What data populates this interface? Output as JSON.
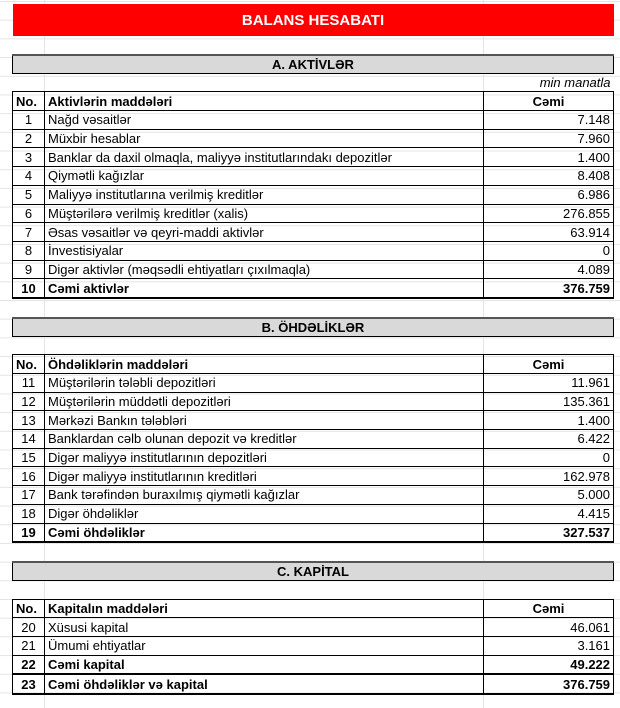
{
  "title": "BALANS HESABATI",
  "colors": {
    "title_bg": "#ff0000",
    "section_bg": "#d9d9d9"
  },
  "unit": "min manatla",
  "sections": [
    {
      "heading": "A. AKTİVLƏR",
      "show_unit": true,
      "columns": [
        "No.",
        "Aktivlərin maddələri",
        "Cəmi"
      ],
      "rows": [
        {
          "no": "1",
          "item": "Nağd vəsaitlər",
          "value": "7.148"
        },
        {
          "no": "2",
          "item": "Müxbir hesablar",
          "value": "7.960"
        },
        {
          "no": "3",
          "item": "Banklar da daxil olmaqla, maliyyə institutlarındakı depozitlər",
          "value": "1.400"
        },
        {
          "no": "4",
          "item": "Qiymətli kağızlar",
          "value": "8.408"
        },
        {
          "no": "5",
          "item": "Maliyyə institutlarına verilmiş kreditlər",
          "value": "6.986"
        },
        {
          "no": "6",
          "item": "Müştərilərə verilmiş kreditlər (xalis)",
          "value": "276.855"
        },
        {
          "no": "7",
          "item": "Əsas vəsaitlər və qeyri-maddi aktivlər",
          "value": "63.914"
        },
        {
          "no": "8",
          "item": "İnvestisiyalar",
          "value": "0"
        },
        {
          "no": "9",
          "item": "Digər aktivlər (məqsədli ehtiyatları çıxılmaqla)",
          "value": "4.089"
        },
        {
          "no": "10",
          "item": "Cəmi aktivlər",
          "value": "376.759",
          "total": true
        }
      ]
    },
    {
      "heading": "B. ÖHDƏLİKLƏR",
      "show_unit": false,
      "columns": [
        "No.",
        "Öhdəliklərin maddələri",
        "Cəmi"
      ],
      "rows": [
        {
          "no": "11",
          "item": "Müştərilərin tələbli depozitləri",
          "value": "11.961"
        },
        {
          "no": "12",
          "item": "Müştərilərin müddətli depozitləri",
          "value": "135.361"
        },
        {
          "no": "13",
          "item": "Mərkəzi Bankın tələbləri",
          "value": "1.400"
        },
        {
          "no": "14",
          "item": "Banklardan cəlb olunan depozit və kreditlər",
          "value": "6.422"
        },
        {
          "no": "15",
          "item": "Digər maliyyə institutlarının depozitləri",
          "value": "0"
        },
        {
          "no": "16",
          "item": "Digər maliyyə institutlarının kreditləri",
          "value": "162.978"
        },
        {
          "no": "17",
          "item": "Bank tərəfindən buraxılmış qiymətli kağızlar",
          "value": "5.000"
        },
        {
          "no": "18",
          "item": "Digər öhdəliklər",
          "value": "4.415"
        },
        {
          "no": "19",
          "item": "Cəmi öhdəliklər",
          "value": "327.537",
          "total": true
        }
      ]
    },
    {
      "heading": "C. KAPİTAL",
      "show_unit": false,
      "columns": [
        "No.",
        "Kapitalın maddələri",
        "Cəmi"
      ],
      "rows": [
        {
          "no": "20",
          "item": "Xüsusi kapital",
          "value": "46.061"
        },
        {
          "no": "21",
          "item": "Ümumi ehtiyatlar",
          "value": "3.161"
        },
        {
          "no": "22",
          "item": "Cəmi kapital",
          "value": "49.222",
          "total": true
        },
        {
          "no": "23",
          "item": "Cəmi öhdəliklər və kapital",
          "value": "376.759",
          "total": true
        }
      ]
    }
  ]
}
